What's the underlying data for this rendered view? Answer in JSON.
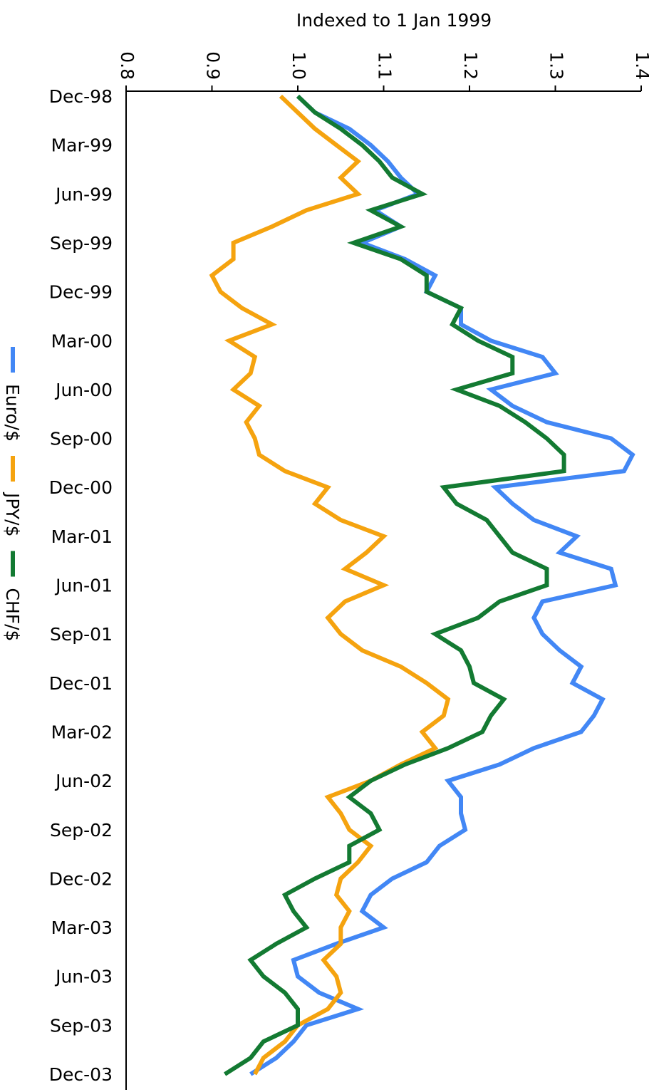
{
  "chart_data": {
    "type": "line",
    "orientation": "vertical",
    "title": "Indexed to 1 Jan 1999",
    "categories": [
      "Dec-98",
      null,
      null,
      "Mar-99",
      null,
      null,
      "Jun-99",
      null,
      null,
      "Sep-99",
      null,
      null,
      "Dec-99",
      null,
      null,
      "Mar-00",
      null,
      null,
      "Jun-00",
      null,
      null,
      "Sep-00",
      null,
      null,
      "Dec-00",
      null,
      null,
      "Mar-01",
      null,
      null,
      "Jun-01",
      null,
      null,
      "Sep-01",
      null,
      null,
      "Dec-01",
      null,
      null,
      "Mar-02",
      null,
      null,
      "Jun-02",
      null,
      null,
      "Sep-02",
      null,
      null,
      "Dec-02",
      null,
      null,
      "Mar-03",
      null,
      null,
      "Jun-03",
      null,
      null,
      "Sep-03",
      null,
      null,
      "Dec-03"
    ],
    "ylim": [
      0.8,
      1.4
    ],
    "yticks": [
      0.8,
      0.9,
      {
        "value": 1,
        "label": "1.0"
      },
      1.1,
      1.2,
      1.3,
      1.4
    ],
    "series": [
      {
        "name": "Euro/$",
        "color": "#4287f5",
        "values": [
          1.0,
          1.02,
          1.06,
          1.085,
          1.105,
          1.12,
          1.14,
          1.09,
          1.12,
          1.075,
          1.125,
          1.16,
          1.15,
          1.19,
          1.19,
          1.225,
          1.285,
          1.3,
          1.225,
          1.25,
          1.29,
          1.365,
          1.39,
          1.38,
          1.23,
          1.25,
          1.275,
          1.325,
          1.305,
          1.365,
          1.37,
          1.285,
          1.275,
          1.285,
          1.305,
          1.33,
          1.32,
          1.355,
          1.345,
          1.33,
          1.275,
          1.235,
          1.175,
          1.19,
          1.19,
          1.195,
          1.165,
          1.15,
          1.11,
          1.085,
          1.075,
          1.1,
          1.045,
          0.995,
          1.0,
          1.025,
          1.07,
          1.01,
          0.995,
          0.975,
          0.945
        ]
      },
      {
        "name": "JPY/$",
        "color": "#f5a30f",
        "values": [
          0.98,
          1.0,
          1.02,
          1.045,
          1.07,
          1.05,
          1.07,
          1.01,
          0.97,
          0.925,
          0.925,
          0.9,
          0.91,
          0.935,
          0.97,
          0.92,
          0.95,
          0.945,
          0.925,
          0.955,
          0.94,
          0.95,
          0.955,
          0.985,
          1.035,
          1.02,
          1.05,
          1.1,
          1.08,
          1.055,
          1.1,
          1.055,
          1.035,
          1.05,
          1.075,
          1.12,
          1.15,
          1.175,
          1.17,
          1.145,
          1.16,
          1.12,
          1.085,
          1.035,
          1.05,
          1.06,
          1.085,
          1.07,
          1.05,
          1.045,
          1.06,
          1.05,
          1.05,
          1.03,
          1.045,
          1.05,
          1.035,
          1.0,
          0.985,
          0.96,
          0.95
        ]
      },
      {
        "name": "CHF/$",
        "color": "#137a32",
        "values": [
          1.0,
          1.02,
          1.05,
          1.075,
          1.095,
          1.11,
          1.145,
          1.085,
          1.12,
          1.065,
          1.12,
          1.15,
          1.15,
          1.19,
          1.18,
          1.21,
          1.25,
          1.25,
          1.185,
          1.235,
          1.265,
          1.29,
          1.31,
          1.31,
          1.17,
          1.185,
          1.22,
          1.235,
          1.25,
          1.29,
          1.29,
          1.235,
          1.21,
          1.16,
          1.19,
          1.2,
          1.205,
          1.24,
          1.225,
          1.215,
          1.175,
          1.125,
          1.085,
          1.06,
          1.085,
          1.095,
          1.06,
          1.06,
          1.02,
          0.985,
          0.995,
          1.01,
          0.975,
          0.945,
          0.96,
          0.985,
          1.0,
          1.0,
          0.96,
          0.945,
          0.915
        ]
      }
    ]
  }
}
